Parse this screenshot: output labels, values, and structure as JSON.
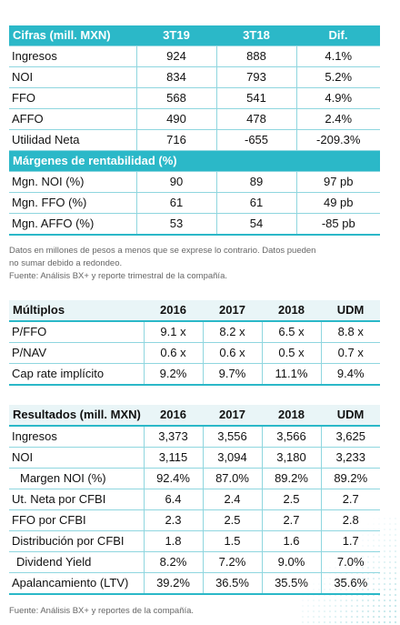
{
  "cifras": {
    "header": [
      "Cifras (mill. MXN)",
      "3T19",
      "3T18",
      "Dif."
    ],
    "rows": [
      [
        "Ingresos",
        "924",
        "888",
        "4.1%"
      ],
      [
        "NOI",
        "834",
        "793",
        "5.2%"
      ],
      [
        "FFO",
        "568",
        "541",
        "4.9%"
      ],
      [
        "AFFO",
        "490",
        "478",
        "2.4%"
      ],
      [
        "Utilidad Neta",
        "716",
        "-655",
        "-209.3%"
      ]
    ],
    "subheader": "Márgenes de rentabilidad (%)",
    "margin_rows": [
      [
        "Mgn. NOI (%)",
        "90",
        "89",
        "97 pb"
      ],
      [
        "Mgn. FFO (%)",
        "61",
        "61",
        "49 pb"
      ],
      [
        "Mgn. AFFO (%)",
        "53",
        "54",
        "-85 pb"
      ]
    ]
  },
  "note1": {
    "line1": "Datos en millones de pesos a menos que se exprese lo contrario. Datos pueden",
    "line2": "no sumar debido a redondeo.",
    "line3": "Fuente: Análisis BX+ y reporte trimestral de la compañía."
  },
  "multiplos": {
    "header": [
      "Múltiplos",
      "2016",
      "2017",
      "2018",
      "UDM"
    ],
    "rows": [
      [
        "P/FFO",
        "9.1 x",
        "8.2 x",
        "6.5 x",
        "8.8 x"
      ],
      [
        "P/NAV",
        "0.6 x",
        "0.6 x",
        "0.5 x",
        "0.7 x"
      ],
      [
        "Cap rate implícito",
        "9.2%",
        "9.7%",
        "11.1%",
        "9.4%"
      ]
    ]
  },
  "resultados": {
    "header": [
      "Resultados (mill. MXN)",
      "2016",
      "2017",
      "2018",
      "UDM"
    ],
    "rows": [
      [
        "Ingresos",
        "3,373",
        "3,556",
        "3,566",
        "3,625"
      ],
      [
        "NOI",
        "3,115",
        "3,094",
        "3,180",
        "3,233"
      ],
      [
        " Margen NOI (%)",
        "92.4%",
        "87.0%",
        "89.2%",
        "89.2%"
      ],
      [
        "Ut. Neta por CFBI",
        "6.4",
        "2.4",
        "2.5",
        "2.7"
      ],
      [
        "FFO por CFBI",
        "2.3",
        "2.5",
        "2.7",
        "2.8"
      ],
      [
        "Distribución por CFBI",
        "1.8",
        "1.5",
        "1.6",
        "1.7"
      ],
      [
        " Dividend Yield",
        "8.2%",
        "7.2%",
        "9.0%",
        "7.0%"
      ],
      [
        "Apalancamiento (LTV)",
        "39.2%",
        "36.5%",
        "35.5%",
        "35.6%"
      ]
    ]
  },
  "note2": "Fuente: Análisis BX+ y reportes de la compañía."
}
